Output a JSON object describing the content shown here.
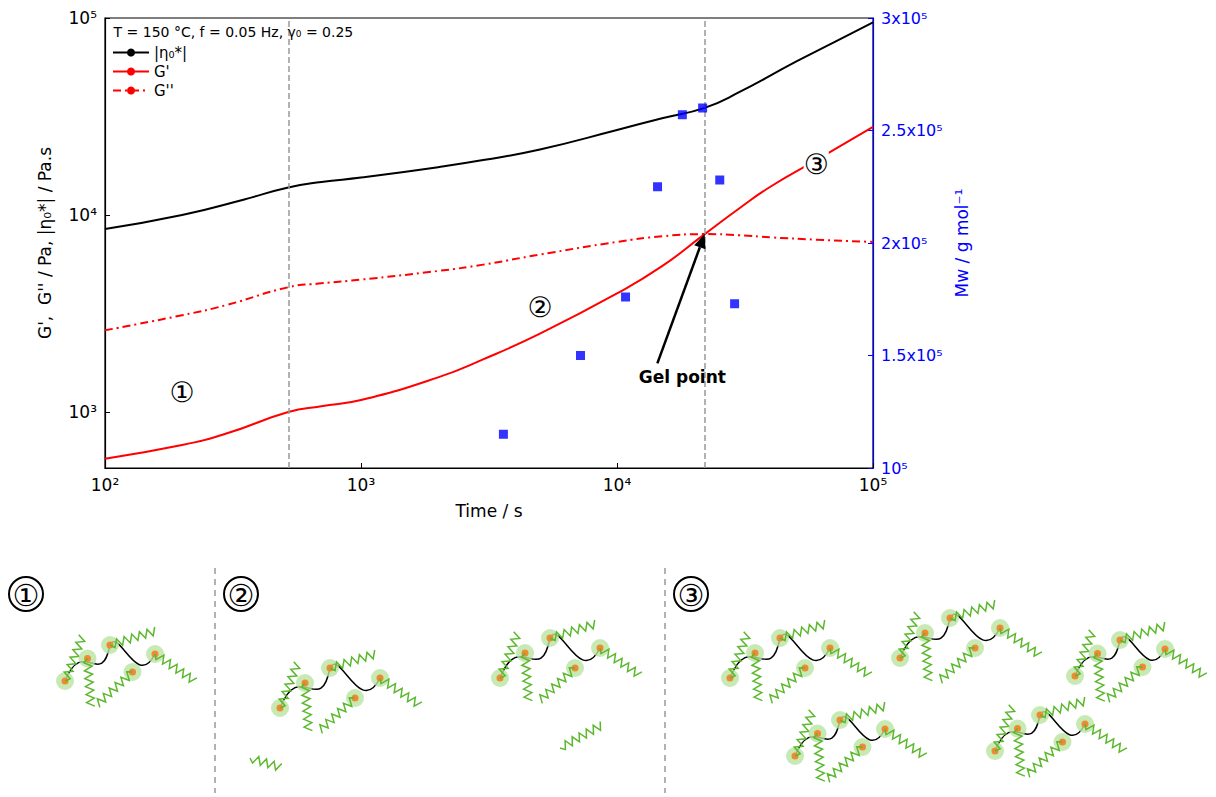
{
  "chart_data": {
    "type": "line",
    "x_label": "Time / s",
    "y_label": "G',  G'' / Pa, |η₀*| / Pa.s",
    "y2_label": "Mᴡ / g mol⁻¹",
    "log": true,
    "grid": false,
    "legend": "top-left",
    "xlim": [
      100,
      100000
    ],
    "xticks": [
      {
        "value": 100,
        "label": "10²"
      },
      {
        "value": 1000,
        "label": "10³"
      },
      {
        "value": 10000,
        "label": "10⁴"
      },
      {
        "value": 100000,
        "label": "10⁵"
      }
    ],
    "ylim": [
      520,
      100000
    ],
    "yticks": [
      {
        "value": 1000,
        "label": "10³"
      },
      {
        "value": 10000,
        "label": "10⁴"
      },
      {
        "value": 100000,
        "label": "10⁵"
      }
    ],
    "y2lim": [
      100000,
      300000
    ],
    "y2ticks": [
      {
        "value": 100000,
        "label": "10⁵"
      },
      {
        "value": 150000,
        "label": "1.5x10⁵"
      },
      {
        "value": 200000,
        "label": "2x10⁵"
      },
      {
        "value": 250000,
        "label": "2.5x10⁵"
      },
      {
        "value": 300000,
        "label": "3x10⁵"
      }
    ],
    "vlines": [
      520,
      22000
    ],
    "series": [
      {
        "name": "|η₀*|",
        "color": "#000000",
        "line_style": "solid",
        "x": [
          100,
          200,
          350,
          520,
          700,
          1000,
          2000,
          3000,
          5000,
          10000,
          15000,
          22000,
          30000,
          50000,
          70000,
          100000
        ],
        "values": [
          8500,
          10000,
          12000,
          13800,
          14700,
          15500,
          17500,
          19000,
          21500,
          27000,
          31000,
          35000,
          42000,
          60000,
          75000,
          95000
        ]
      },
      {
        "name": "G'",
        "color": "#ff0000",
        "line_style": "solid",
        "x": [
          100,
          200,
          300,
          520,
          700,
          1000,
          2000,
          3000,
          5000,
          10000,
          15000,
          22000,
          30000,
          40000,
          60000,
          100000
        ],
        "values": [
          580,
          680,
          780,
          1000,
          1070,
          1150,
          1500,
          1850,
          2500,
          4000,
          5500,
          8000,
          10800,
          14000,
          19000,
          28000
        ]
      },
      {
        "name": "G''",
        "color": "#ff0000",
        "line_style": "dashdot",
        "x": [
          100,
          200,
          300,
          520,
          700,
          1000,
          2000,
          3000,
          5000,
          10000,
          15000,
          22000,
          30000,
          40000,
          60000,
          100000
        ],
        "values": [
          2600,
          3100,
          3500,
          4300,
          4500,
          4700,
          5200,
          5600,
          6300,
          7300,
          7800,
          8000,
          7900,
          7700,
          7500,
          7300
        ]
      },
      {
        "type": "scatter",
        "axis": "y2",
        "color": "#0000ff",
        "marker": "square",
        "x": [
          3600,
          7200,
          10800,
          14400,
          18000,
          21600,
          25200,
          28800
        ],
        "values": [
          115000,
          150000,
          176000,
          225000,
          257000,
          260000,
          228000,
          173000
        ]
      }
    ],
    "annotations": [
      {
        "text": "T = 150 °C, f = 0.05 Hz, γ₀ = 0.25",
        "x": 108,
        "y": 85000
      },
      {
        "text": "①",
        "x": 200,
        "y": 1250
      },
      {
        "text": "②",
        "x": 5000,
        "y": 3400
      },
      {
        "text": "③",
        "x": 60000,
        "y": 18000
      },
      {
        "text": "Gel point",
        "x": 18000,
        "y": 1500,
        "arrow_to": [
          22000,
          8000
        ]
      }
    ]
  },
  "diagram": {
    "panels": [
      "①",
      "②",
      "③"
    ]
  }
}
